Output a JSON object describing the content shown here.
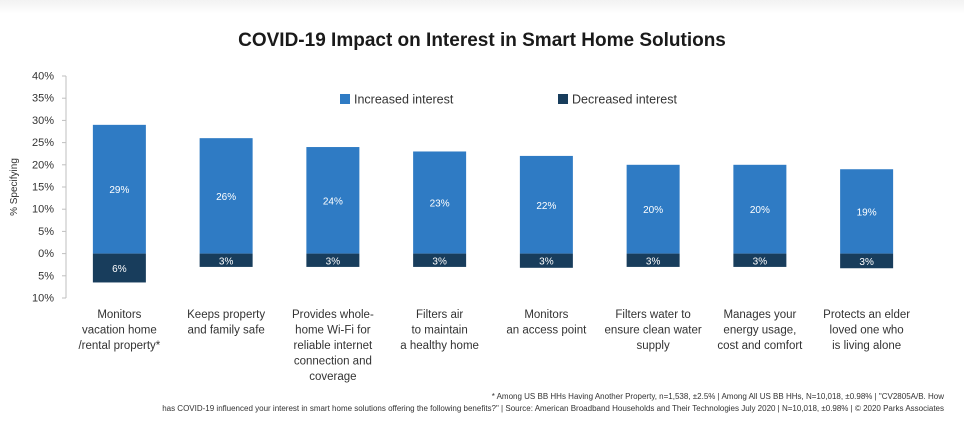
{
  "chart_data": {
    "type": "bar",
    "title": "COVID-19 Impact on Interest in Smart Home Solutions",
    "ylabel": "% Specifying",
    "xlabel": "",
    "ylim": [
      -10,
      40
    ],
    "yticks": [
      -10,
      -5,
      0,
      5,
      10,
      15,
      20,
      25,
      30,
      35,
      40
    ],
    "ytick_labels": [
      "10%",
      "5%",
      "0%",
      "5%",
      "10%",
      "15%",
      "20%",
      "25%",
      "30%",
      "35%",
      "40%"
    ],
    "grid": false,
    "legend": "top-center",
    "categories": [
      [
        "Monitors",
        "vacation home",
        "/rental property*"
      ],
      [
        "Keeps property",
        "and family  safe"
      ],
      [
        "Provides whole-",
        "home Wi-Fi for",
        "reliable internet",
        "connection and",
        "coverage"
      ],
      [
        "Filters air",
        "to maintain",
        "a healthy home"
      ],
      [
        "Monitors",
        "an access point"
      ],
      [
        "Filters water to",
        "ensure clean water",
        "supply"
      ],
      [
        "Manages your",
        "energy usage,",
        "cost and comfort"
      ],
      [
        "Protects an elder",
        "loved one who",
        "is living alone"
      ]
    ],
    "series": [
      {
        "name": "Increased interest",
        "color": "#2f7bc4",
        "values": [
          29,
          26,
          24,
          23,
          22,
          20,
          20,
          19
        ],
        "labels": [
          "29%",
          "26%",
          "24%",
          "23%",
          "22%",
          "20%",
          "20%",
          "19%"
        ]
      },
      {
        "name": "Decreased interest",
        "color": "#183d5c",
        "values": [
          -6.5,
          -3,
          -3,
          -3,
          -3.2,
          -3,
          -3,
          -3.3
        ],
        "labels": [
          "6%",
          "3%",
          "3%",
          "3%",
          "3%",
          "3%",
          "3%",
          "3%"
        ]
      }
    ]
  },
  "footnotes": {
    "line1": "* Among US BB HHs Having Another Property, n=1,538, ±2.5% | Among All US BB HHs, N=10,018, ±0.98% | \"CV2805A/B. How",
    "line2": "has COVID-19 influenced your interest in smart home solutions offering the following benefits?\" | Source: American Broadband Households and Their Technologies July 2020 |  N=10,018, ±0.98% | © 2020 Parks Associates"
  }
}
